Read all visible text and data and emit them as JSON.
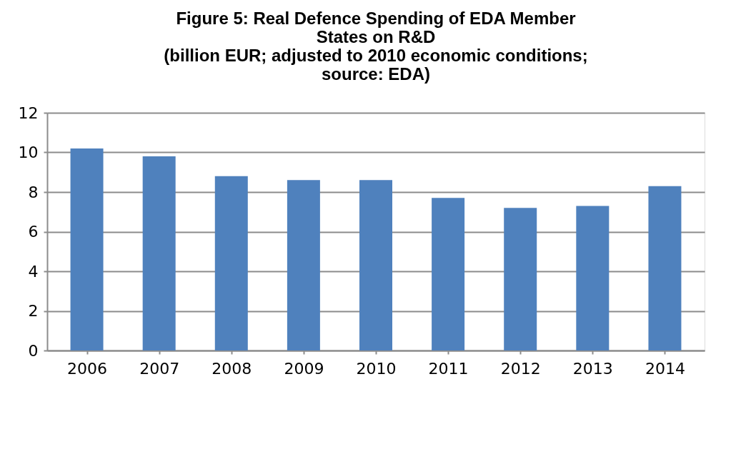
{
  "chart_data": {
    "type": "bar",
    "title": [
      "Figure 5: Real Defence Spending of EDA Member",
      "States on R&D",
      "(billion EUR; adjusted to 2010 economic conditions;",
      "source: EDA)"
    ],
    "categories": [
      "2006",
      "2007",
      "2008",
      "2009",
      "2010",
      "2011",
      "2012",
      "2013",
      "2014"
    ],
    "values": [
      10.2,
      9.8,
      8.8,
      8.6,
      8.6,
      7.7,
      7.2,
      7.3,
      8.3
    ],
    "color": "#4f81bd",
    "ylim": [
      0,
      12
    ],
    "yticks": [
      0,
      2,
      4,
      6,
      8,
      10,
      12
    ],
    "grid": "y"
  }
}
